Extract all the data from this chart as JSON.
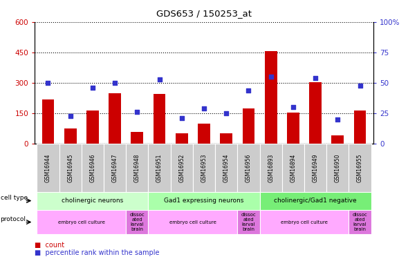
{
  "title": "GDS653 / 150253_at",
  "samples": [
    "GSM16944",
    "GSM16945",
    "GSM16946",
    "GSM16947",
    "GSM16948",
    "GSM16951",
    "GSM16952",
    "GSM16953",
    "GSM16954",
    "GSM16956",
    "GSM16893",
    "GSM16894",
    "GSM16949",
    "GSM16950",
    "GSM16955"
  ],
  "counts": [
    220,
    75,
    165,
    250,
    60,
    245,
    50,
    100,
    50,
    175,
    455,
    155,
    305,
    40,
    165
  ],
  "percentiles": [
    50,
    23,
    46,
    50,
    26,
    53,
    21,
    29,
    25,
    44,
    55,
    30,
    54,
    20,
    48
  ],
  "ylim_left": [
    0,
    600
  ],
  "ylim_right": [
    0,
    100
  ],
  "yticks_left": [
    0,
    150,
    300,
    450,
    600
  ],
  "yticks_right": [
    0,
    25,
    50,
    75,
    100
  ],
  "bar_color": "#cc0000",
  "dot_color": "#3333cc",
  "grid_color": "#000000",
  "cell_types": [
    {
      "label": "cholinergic neurons",
      "start": 0,
      "end": 5,
      "color": "#ccffcc"
    },
    {
      "label": "Gad1 expressing neurons",
      "start": 5,
      "end": 10,
      "color": "#aaffaa"
    },
    {
      "label": "cholinergic/Gad1 negative",
      "start": 10,
      "end": 15,
      "color": "#77ee77"
    }
  ],
  "protocols": [
    {
      "label": "embryo cell culture",
      "start": 0,
      "end": 4,
      "color": "#ffaaff"
    },
    {
      "label": "dissoc\nated\nlarval\nbrain",
      "start": 4,
      "end": 5,
      "color": "#dd77dd"
    },
    {
      "label": "embryo cell culture",
      "start": 5,
      "end": 9,
      "color": "#ffaaff"
    },
    {
      "label": "dissoc\nated\nlarval\nbrain",
      "start": 9,
      "end": 10,
      "color": "#dd77dd"
    },
    {
      "label": "embryo cell culture",
      "start": 10,
      "end": 14,
      "color": "#ffaaff"
    },
    {
      "label": "dissoc\nated\nlarval\nbrain",
      "start": 14,
      "end": 15,
      "color": "#dd77dd"
    }
  ],
  "left_axis_color": "#cc0000",
  "right_axis_color": "#3333cc",
  "fig_width": 5.9,
  "fig_height": 3.75,
  "dpi": 100
}
